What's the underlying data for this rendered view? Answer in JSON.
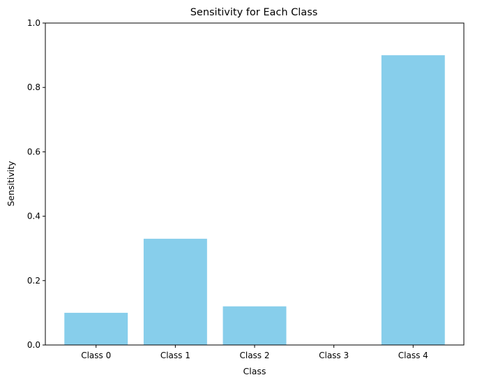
{
  "chart_data": {
    "type": "bar",
    "title": "Sensitivity for Each Class",
    "xlabel": "Class",
    "ylabel": "Sensitivity",
    "categories": [
      "Class 0",
      "Class 1",
      "Class 2",
      "Class 3",
      "Class 4"
    ],
    "values": [
      0.1,
      0.33,
      0.12,
      0.0,
      0.9
    ],
    "ylim": [
      0,
      1
    ],
    "yticks": [
      "0.0",
      "0.2",
      "0.4",
      "0.6",
      "0.8",
      "1.0"
    ],
    "bar_color": "#87CEEB",
    "grid": false,
    "legend": false
  }
}
